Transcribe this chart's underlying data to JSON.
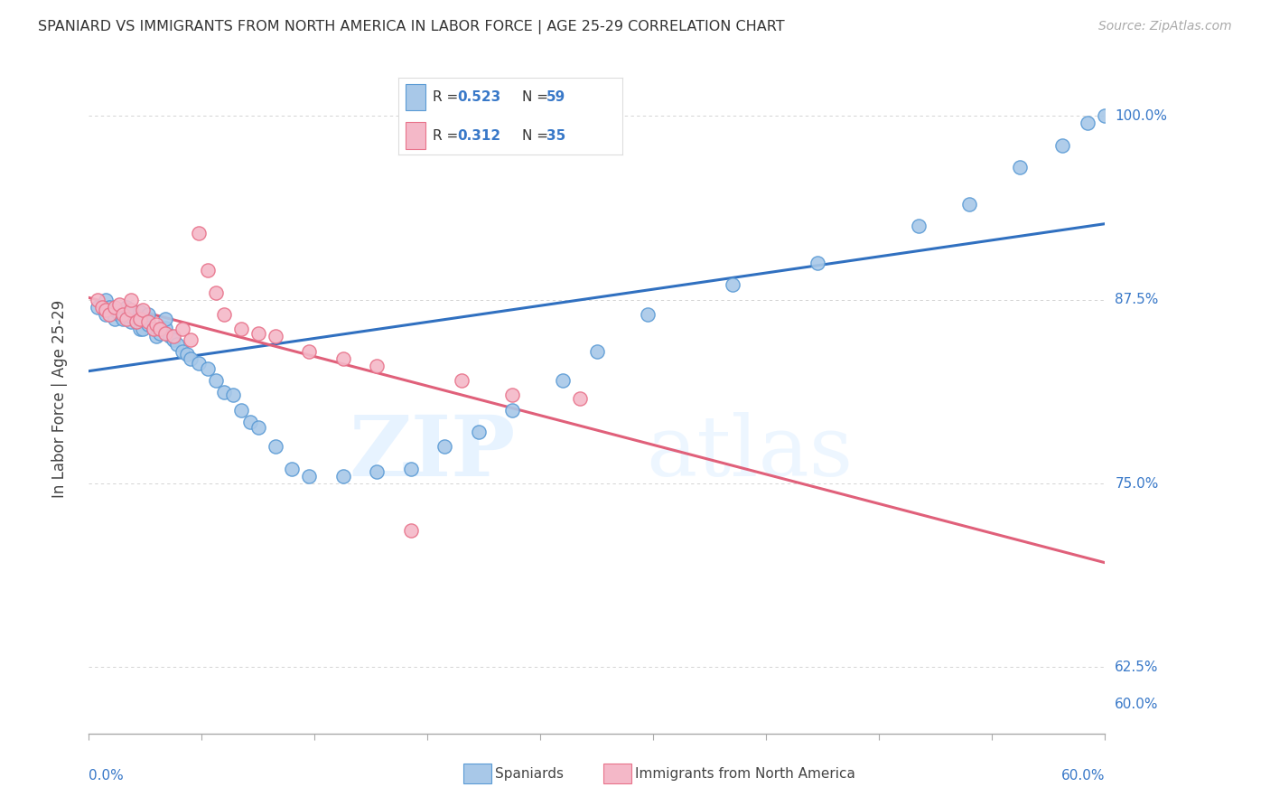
{
  "title": "SPANIARD VS IMMIGRANTS FROM NORTH AMERICA IN LABOR FORCE | AGE 25-29 CORRELATION CHART",
  "source": "Source: ZipAtlas.com",
  "ylabel": "In Labor Force | Age 25-29",
  "xmin": 0.0,
  "xmax": 0.6,
  "ymin": 0.58,
  "ymax": 1.035,
  "blue_R": 0.523,
  "blue_N": 59,
  "pink_R": 0.312,
  "pink_N": 35,
  "blue_color": "#a8c8e8",
  "pink_color": "#f4b8c8",
  "blue_edge_color": "#5b9bd5",
  "pink_edge_color": "#e8728a",
  "blue_line_color": "#3070c0",
  "pink_line_color": "#e0607a",
  "legend_R_color": "#3878c8",
  "ytick_vals": [
    1.0,
    0.875,
    0.75,
    0.625
  ],
  "ytick_labels": [
    "100.0%",
    "87.5%",
    "75.0%",
    "62.5%"
  ],
  "yright_extra_val": 0.6,
  "yright_extra_label": "60.0%",
  "blue_scatter_x": [
    0.005,
    0.01,
    0.01,
    0.012,
    0.015,
    0.015,
    0.018,
    0.02,
    0.02,
    0.022,
    0.025,
    0.025,
    0.025,
    0.028,
    0.03,
    0.03,
    0.03,
    0.032,
    0.035,
    0.035,
    0.038,
    0.04,
    0.042,
    0.045,
    0.045,
    0.048,
    0.05,
    0.052,
    0.055,
    0.058,
    0.06,
    0.065,
    0.07,
    0.075,
    0.08,
    0.085,
    0.09,
    0.095,
    0.1,
    0.11,
    0.12,
    0.13,
    0.15,
    0.17,
    0.19,
    0.21,
    0.23,
    0.25,
    0.28,
    0.3,
    0.33,
    0.38,
    0.43,
    0.49,
    0.52,
    0.55,
    0.575,
    0.59,
    0.6
  ],
  "blue_scatter_y": [
    0.87,
    0.865,
    0.875,
    0.87,
    0.862,
    0.868,
    0.865,
    0.862,
    0.866,
    0.87,
    0.86,
    0.864,
    0.868,
    0.86,
    0.855,
    0.862,
    0.867,
    0.855,
    0.858,
    0.865,
    0.855,
    0.85,
    0.852,
    0.856,
    0.862,
    0.85,
    0.848,
    0.845,
    0.84,
    0.838,
    0.835,
    0.832,
    0.828,
    0.82,
    0.812,
    0.81,
    0.8,
    0.792,
    0.788,
    0.775,
    0.76,
    0.755,
    0.755,
    0.758,
    0.76,
    0.775,
    0.785,
    0.8,
    0.82,
    0.84,
    0.865,
    0.885,
    0.9,
    0.925,
    0.94,
    0.965,
    0.98,
    0.995,
    1.0
  ],
  "pink_scatter_x": [
    0.005,
    0.008,
    0.01,
    0.012,
    0.015,
    0.018,
    0.02,
    0.022,
    0.025,
    0.025,
    0.028,
    0.03,
    0.032,
    0.035,
    0.038,
    0.04,
    0.042,
    0.045,
    0.05,
    0.055,
    0.06,
    0.065,
    0.07,
    0.075,
    0.08,
    0.09,
    0.1,
    0.11,
    0.13,
    0.15,
    0.17,
    0.19,
    0.22,
    0.25,
    0.29
  ],
  "pink_scatter_y": [
    0.875,
    0.87,
    0.868,
    0.865,
    0.87,
    0.872,
    0.865,
    0.862,
    0.868,
    0.875,
    0.86,
    0.862,
    0.868,
    0.86,
    0.855,
    0.858,
    0.855,
    0.852,
    0.85,
    0.855,
    0.848,
    0.92,
    0.895,
    0.88,
    0.865,
    0.855,
    0.852,
    0.85,
    0.84,
    0.835,
    0.83,
    0.718,
    0.82,
    0.81,
    0.808
  ]
}
